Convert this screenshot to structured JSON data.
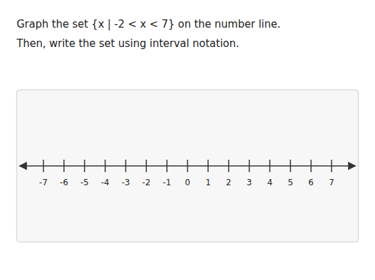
{
  "chart_data": {
    "type": "number_line",
    "title": "Graph the set {x | -2 < x < 7} on the number line.",
    "subtitle": "Then, write the set using interval notation.",
    "xlim": [
      -8.3,
      8.3
    ],
    "xticks": [
      -7,
      -6,
      -5,
      -4,
      -3,
      -2,
      -1,
      0,
      1,
      2,
      3,
      4,
      5,
      6,
      7
    ]
  }
}
